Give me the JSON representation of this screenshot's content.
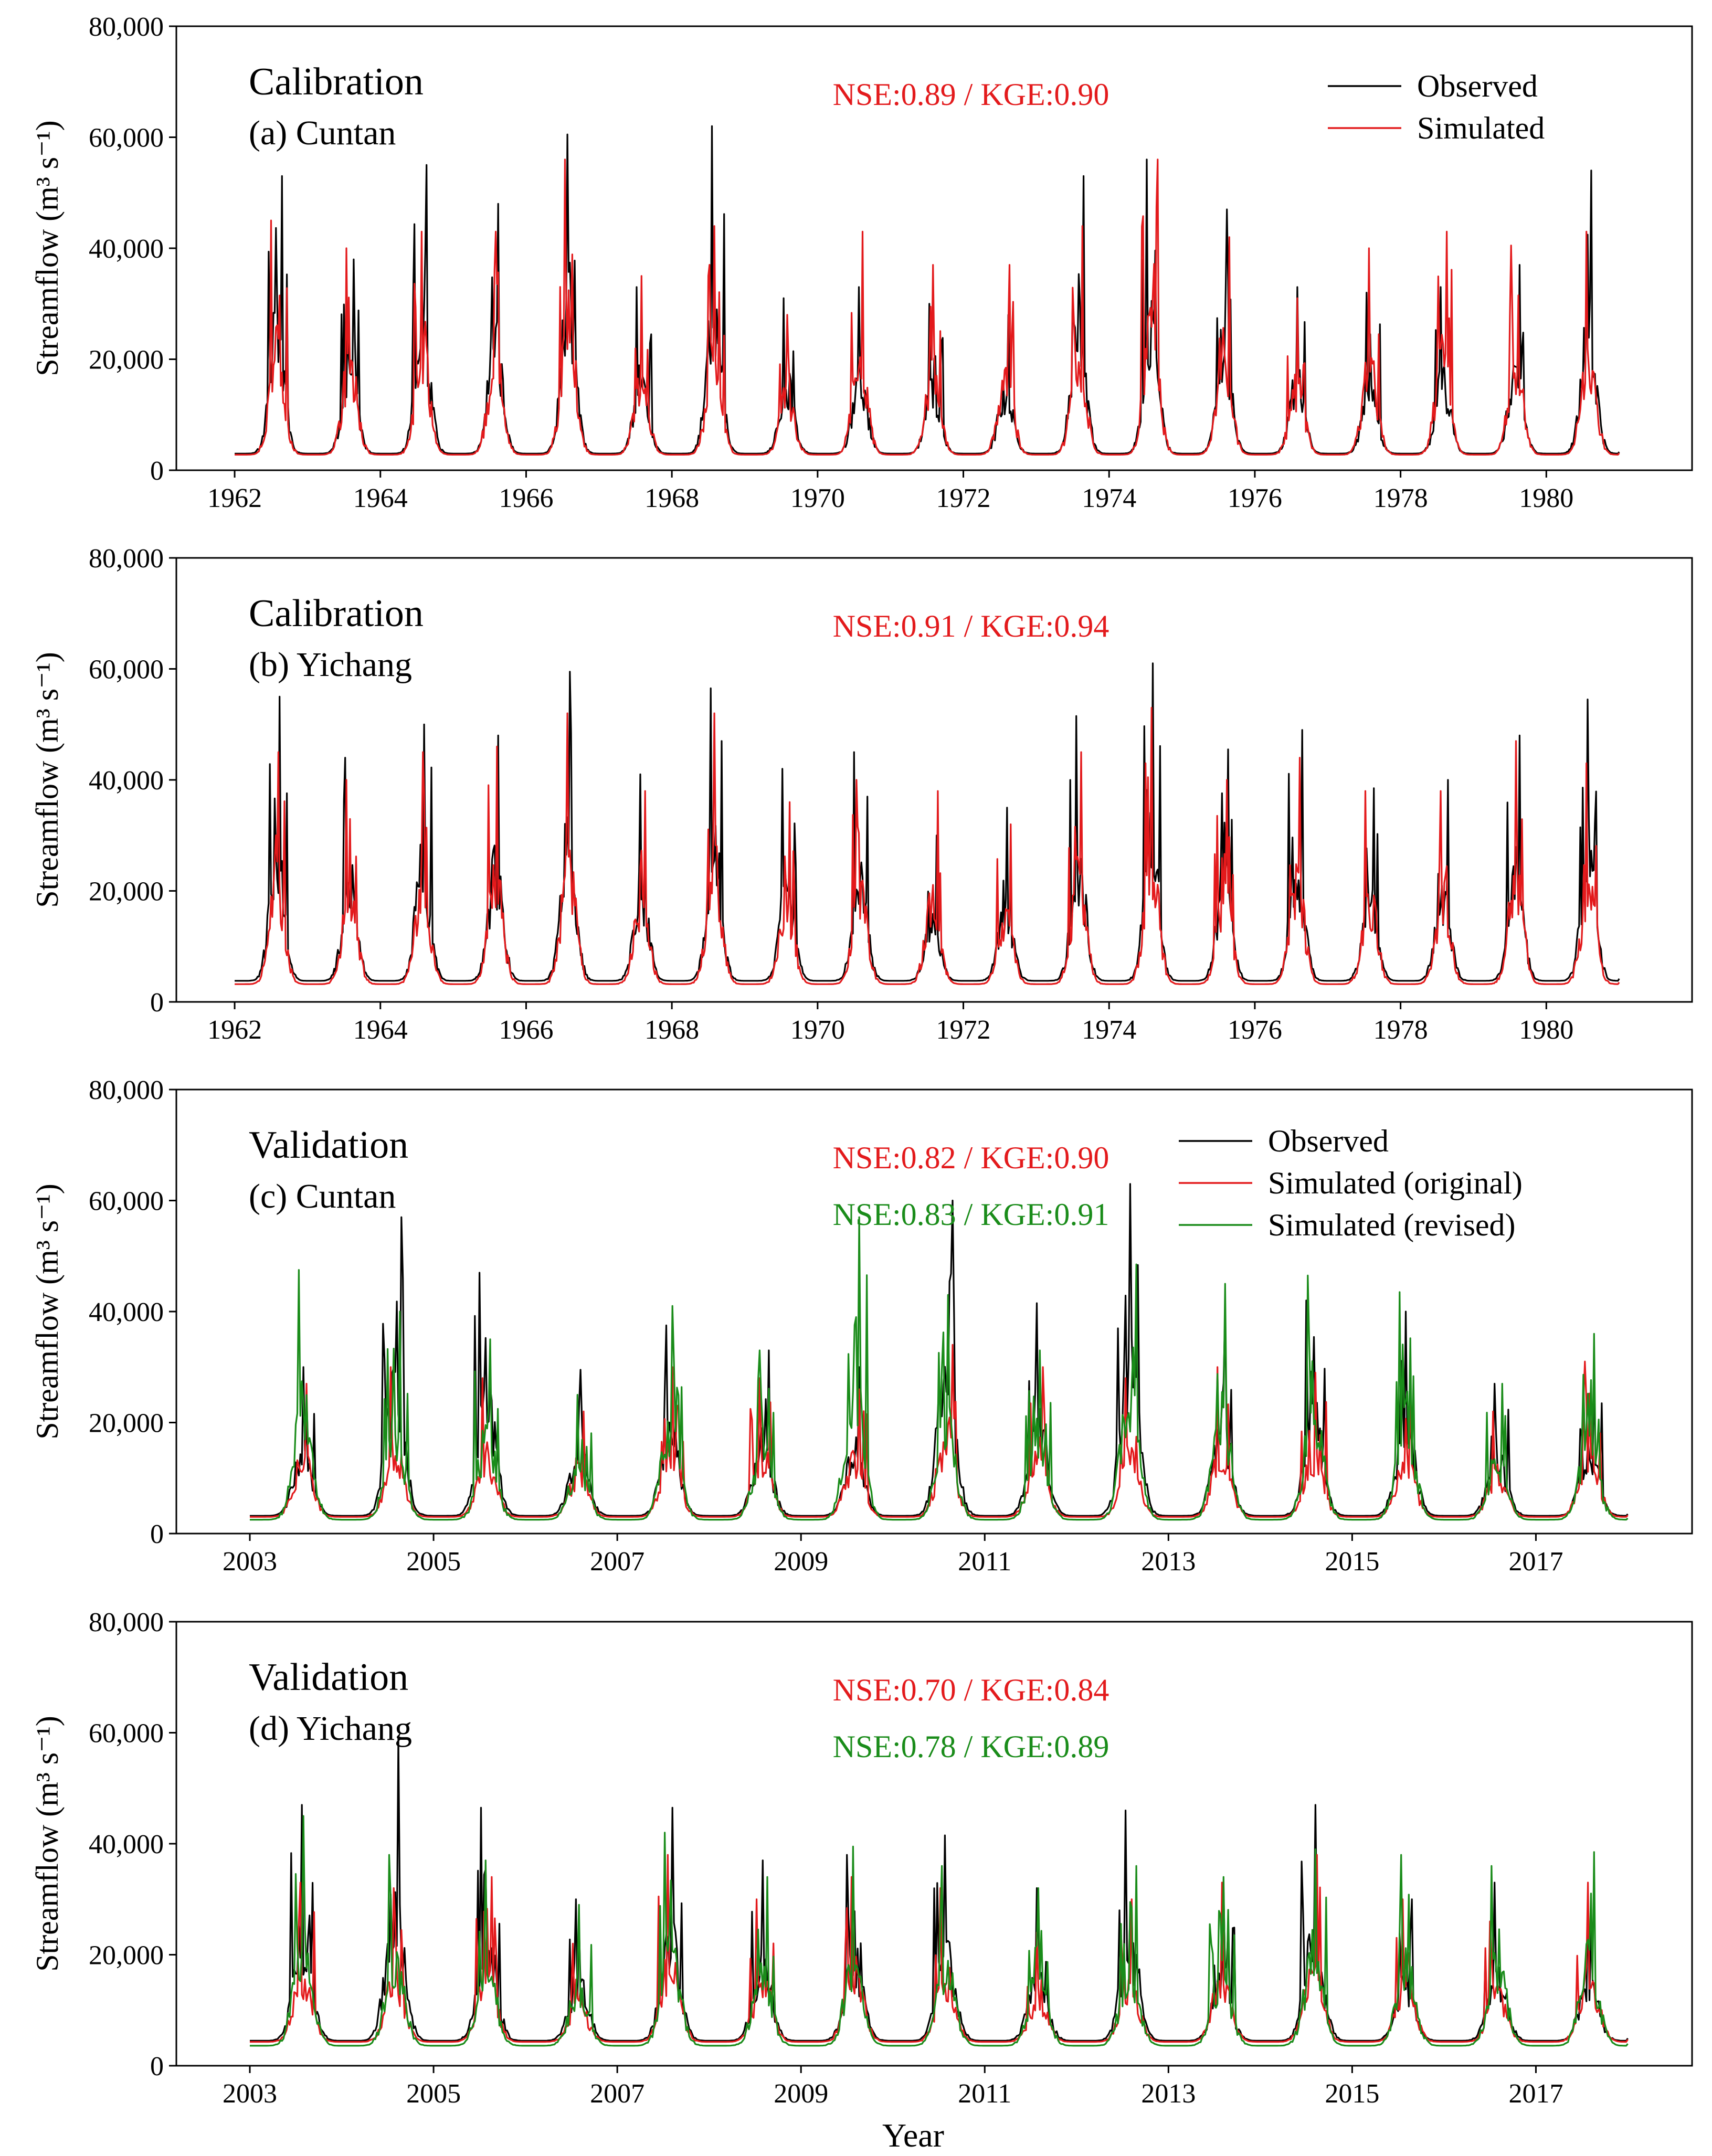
{
  "figure": {
    "xlabel": "Year"
  },
  "chart_data": [
    {
      "type": "line",
      "panel": "a",
      "heading": "Calibration",
      "station": "(a) Cuntan",
      "ylabel": "Streamflow",
      "yunit": "(m³ s⁻¹)",
      "ylim": [
        0,
        80000
      ],
      "yticks": [
        0,
        20000,
        40000,
        60000,
        80000
      ],
      "ytick_labels": [
        "0",
        "20,000",
        "40,000",
        "60,000",
        "80,000"
      ],
      "xlim": [
        1961.2,
        1982.0
      ],
      "xticks": [
        1962,
        1964,
        1966,
        1968,
        1970,
        1972,
        1974,
        1976,
        1978,
        1980
      ],
      "xtick_labels": [
        "1962",
        "1964",
        "1966",
        "1968",
        "1970",
        "1972",
        "1974",
        "1976",
        "1978",
        "1980"
      ],
      "start_year": 1962,
      "years": 19,
      "metrics": [
        {
          "text": "NSE:0.89 / KGE:0.90",
          "color": "#e31a1c"
        }
      ],
      "legend": {
        "position": "top-right",
        "entries": [
          {
            "label": "Observed",
            "color": "#000000"
          },
          {
            "label": "Simulated",
            "color": "#e31a1c"
          }
        ]
      },
      "series": [
        {
          "name": "Observed",
          "color": "#000000",
          "base": 3000,
          "peaks": [
            53000,
            38000,
            55000,
            48000,
            60500,
            33000,
            62000,
            31000,
            33000,
            30000,
            28000,
            53000,
            56000,
            47000,
            33000,
            32000,
            33000,
            37000,
            54000
          ]
        },
        {
          "name": "Simulated",
          "color": "#e31a1c",
          "base": 2800,
          "peaks": [
            45000,
            40000,
            43000,
            43000,
            56000,
            35000,
            44000,
            28000,
            43000,
            37000,
            37000,
            44000,
            56000,
            42000,
            31000,
            40000,
            43000,
            40500,
            43000
          ]
        }
      ]
    },
    {
      "type": "line",
      "panel": "b",
      "heading": "Calibration",
      "station": "(b) Yichang",
      "ylabel": "Streamflow",
      "yunit": "(m³ s⁻¹)",
      "ylim": [
        0,
        80000
      ],
      "yticks": [
        0,
        20000,
        40000,
        60000,
        80000
      ],
      "ytick_labels": [
        "0",
        "20,000",
        "40,000",
        "60,000",
        "80,000"
      ],
      "xlim": [
        1961.2,
        1982.0
      ],
      "xticks": [
        1962,
        1964,
        1966,
        1968,
        1970,
        1972,
        1974,
        1976,
        1978,
        1980
      ],
      "xtick_labels": [
        "1962",
        "1964",
        "1966",
        "1968",
        "1970",
        "1972",
        "1974",
        "1976",
        "1978",
        "1980"
      ],
      "start_year": 1962,
      "years": 19,
      "metrics": [
        {
          "text": "NSE:0.91 / KGE:0.94",
          "color": "#e31a1c"
        }
      ],
      "legend": null,
      "series": [
        {
          "name": "Observed",
          "color": "#000000",
          "base": 3800,
          "peaks": [
            55000,
            44000,
            50000,
            48000,
            59500,
            41000,
            56500,
            42000,
            45000,
            30000,
            35000,
            51500,
            61000,
            45500,
            49000,
            38500,
            40000,
            48000,
            54500
          ]
        },
        {
          "name": "Simulated",
          "color": "#e31a1c",
          "base": 3200,
          "peaks": [
            45000,
            40000,
            45000,
            46000,
            52000,
            38000,
            52000,
            36000,
            40000,
            38000,
            32000,
            45000,
            53000,
            40000,
            44000,
            38000,
            38000,
            47000,
            43000
          ]
        }
      ]
    },
    {
      "type": "line",
      "panel": "c",
      "heading": "Validation",
      "station": "(c) Cuntan",
      "ylabel": "Streamflow",
      "yunit": "(m³ s⁻¹)",
      "ylim": [
        0,
        80000
      ],
      "yticks": [
        0,
        20000,
        40000,
        60000,
        80000
      ],
      "ytick_labels": [
        "0",
        "20,000",
        "40,000",
        "60,000",
        "80,000"
      ],
      "xlim": [
        2002.2,
        2018.7
      ],
      "xticks": [
        2003,
        2005,
        2007,
        2009,
        2011,
        2013,
        2015,
        2017
      ],
      "xtick_labels": [
        "2003",
        "2005",
        "2007",
        "2009",
        "2011",
        "2013",
        "2015",
        "2017"
      ],
      "start_year": 2003,
      "years": 15,
      "metrics": [
        {
          "text": "NSE:0.82 / KGE:0.90",
          "color": "#e31a1c"
        },
        {
          "text": "NSE:0.83 / KGE:0.91",
          "color": "#1a8c1a"
        }
      ],
      "legend": {
        "position": "top-right",
        "entries": [
          {
            "label": "Observed",
            "color": "#000000"
          },
          {
            "label": "Simulated (original)",
            "color": "#e31a1c"
          },
          {
            "label": "Simulated (revised)",
            "color": "#1a8c1a"
          }
        ]
      },
      "series": [
        {
          "name": "Observed",
          "color": "#000000",
          "base": 3200,
          "peaks": [
            30000,
            57000,
            47000,
            29500,
            37500,
            33000,
            30000,
            60000,
            41500,
            63000,
            40000,
            42000,
            40000,
            27000,
            30000
          ]
        },
        {
          "name": "Simulated (original)",
          "color": "#e31a1c",
          "base": 3000,
          "peaks": [
            27000,
            30000,
            28000,
            22000,
            30000,
            28000,
            26000,
            34000,
            30000,
            28000,
            30000,
            29000,
            27000,
            22000,
            31000
          ]
        },
        {
          "name": "Simulated (revised)",
          "color": "#1a8c1a",
          "base": 2500,
          "peaks": [
            47500,
            40000,
            35000,
            25000,
            41000,
            33000,
            57000,
            43000,
            33000,
            48500,
            45000,
            46500,
            43500,
            27000,
            36000
          ]
        }
      ]
    },
    {
      "type": "line",
      "panel": "d",
      "heading": "Validation",
      "station": "(d) Yichang",
      "ylabel": "Streamflow",
      "yunit": "(m³ s⁻¹)",
      "ylim": [
        0,
        80000
      ],
      "yticks": [
        0,
        20000,
        40000,
        60000,
        80000
      ],
      "ytick_labels": [
        "0",
        "20,000",
        "40,000",
        "60,000",
        "80,000"
      ],
      "xlim": [
        2002.2,
        2018.7
      ],
      "xticks": [
        2003,
        2005,
        2007,
        2009,
        2011,
        2013,
        2015,
        2017
      ],
      "xtick_labels": [
        "2003",
        "2005",
        "2007",
        "2009",
        "2011",
        "2013",
        "2015",
        "2017"
      ],
      "start_year": 2003,
      "years": 15,
      "metrics": [
        {
          "text": "NSE:0.70 / KGE:0.84",
          "color": "#e31a1c"
        },
        {
          "text": "NSE:0.78 / KGE:0.89",
          "color": "#1a8c1a"
        }
      ],
      "legend": null,
      "series": [
        {
          "name": "Observed",
          "color": "#000000",
          "base": 4500,
          "peaks": [
            47000,
            59000,
            46500,
            30000,
            46500,
            37000,
            38000,
            41500,
            32000,
            46000,
            32000,
            47000,
            30000,
            33000,
            30000
          ]
        },
        {
          "name": "Simulated (original)",
          "color": "#e31a1c",
          "base": 4300,
          "peaks": [
            33000,
            32000,
            34000,
            22000,
            38000,
            30000,
            34000,
            32000,
            24000,
            30000,
            33000,
            38000,
            30000,
            26000,
            33000
          ]
        },
        {
          "name": "Simulated (revised)",
          "color": "#1a8c1a",
          "base": 3600,
          "peaks": [
            45000,
            38000,
            37000,
            29000,
            42000,
            34000,
            39500,
            36000,
            32000,
            36000,
            34000,
            39000,
            38000,
            36000,
            38500
          ]
        }
      ]
    }
  ]
}
